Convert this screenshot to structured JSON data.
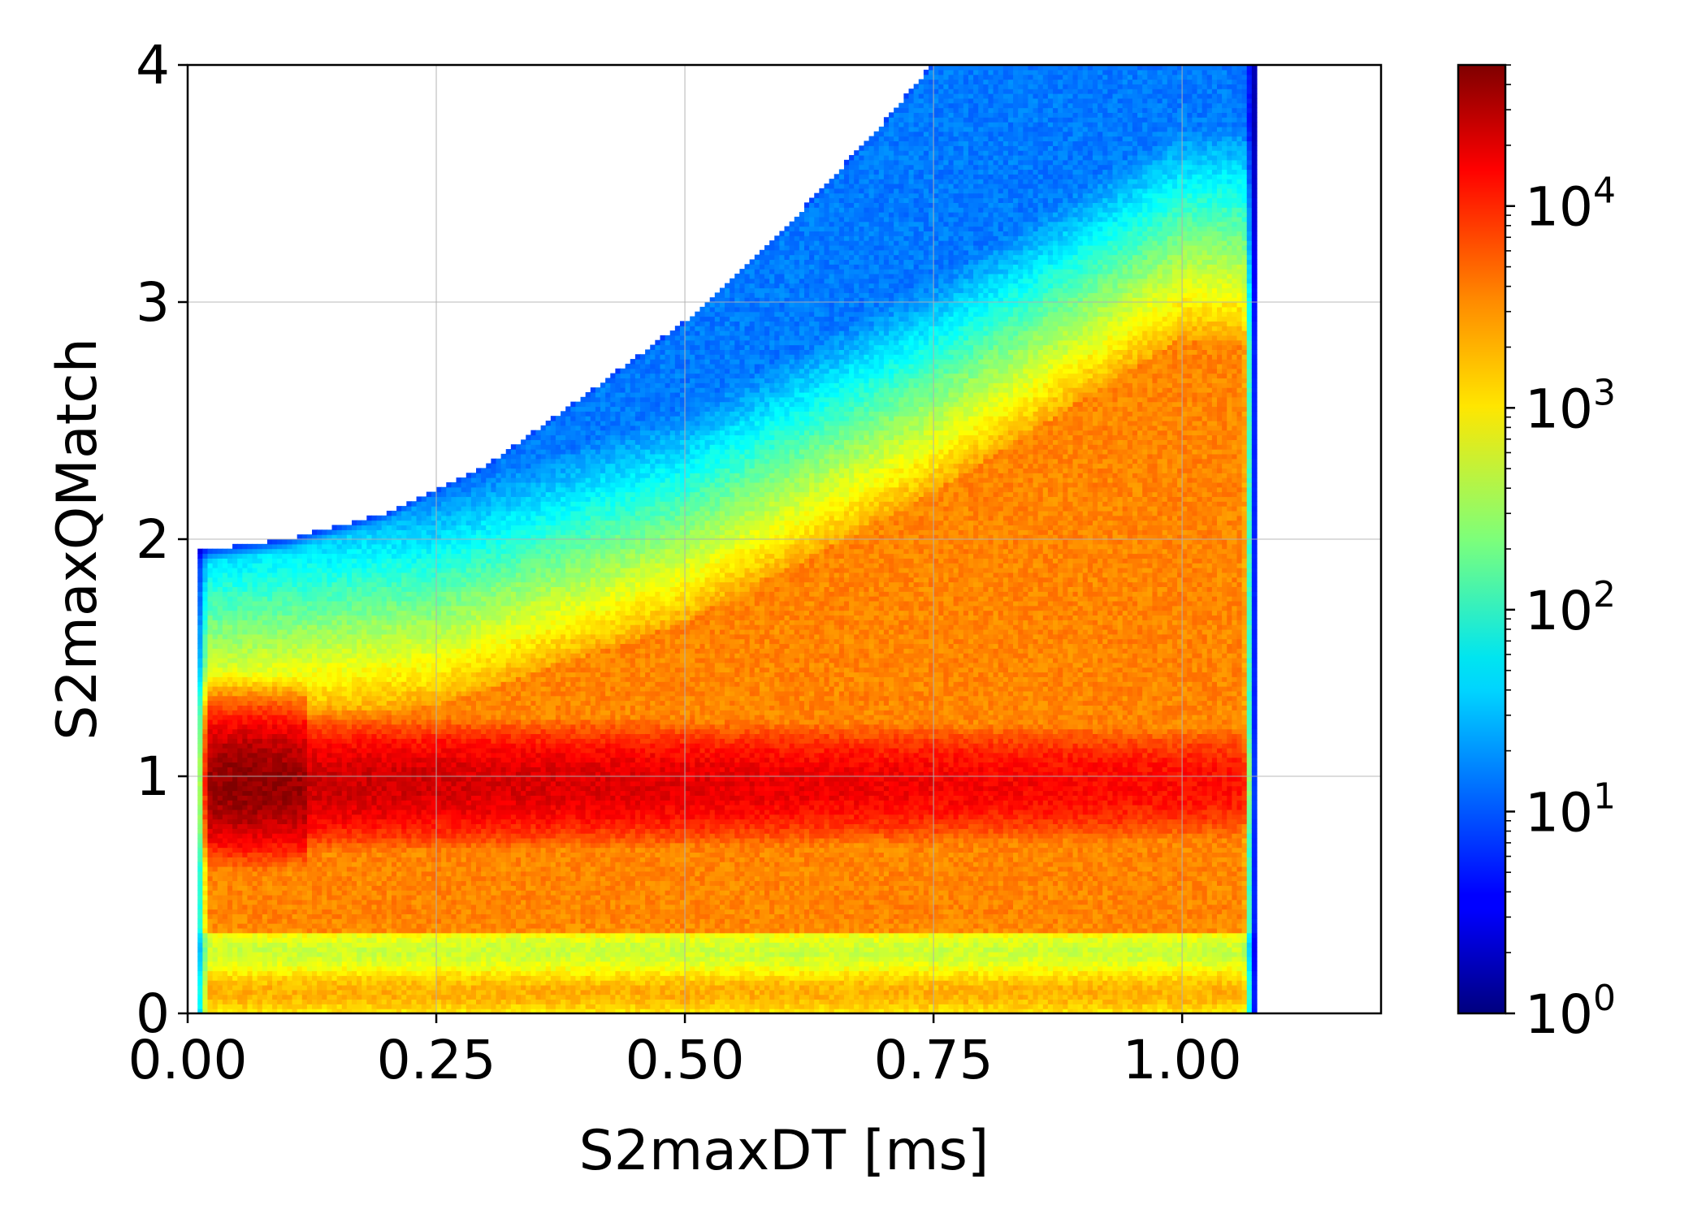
{
  "chart_data": {
    "type": "heatmap",
    "xlabel": "S2maxDT [ms]",
    "ylabel": "S2maxQMatch",
    "xlim": [
      0.0,
      1.2
    ],
    "ylim": [
      0,
      4
    ],
    "x_ticks": [
      "0.00",
      "0.25",
      "0.50",
      "0.75",
      "1.00"
    ],
    "x_tick_values": [
      0.0,
      0.25,
      0.5,
      0.75,
      1.0
    ],
    "y_ticks": [
      "0",
      "1",
      "2",
      "3",
      "4"
    ],
    "y_tick_values": [
      0,
      1,
      2,
      3,
      4
    ],
    "grid": true,
    "colormap": "jet",
    "color_scale": "log",
    "colorbar": {
      "range": [
        1,
        50000
      ],
      "ticks": [
        {
          "base": "10",
          "exp": "0",
          "value": 1
        },
        {
          "base": "10",
          "exp": "1",
          "value": 10
        },
        {
          "base": "10",
          "exp": "2",
          "value": 100
        },
        {
          "base": "10",
          "exp": "3",
          "value": 1000
        },
        {
          "base": "10",
          "exp": "4",
          "value": 10000
        }
      ]
    },
    "data_extent": {
      "x_min": 0.01,
      "x_max": 1.07,
      "upper_edge": [
        {
          "x": 0.01,
          "y": 1.94
        },
        {
          "x": 0.1,
          "y": 1.99
        },
        {
          "x": 0.2,
          "y": 2.1
        },
        {
          "x": 0.3,
          "y": 2.3
        },
        {
          "x": 0.4,
          "y": 2.6
        },
        {
          "x": 0.5,
          "y": 2.91
        },
        {
          "x": 0.6,
          "y": 3.3
        },
        {
          "x": 0.7,
          "y": 3.75
        },
        {
          "x": 0.75,
          "y": 4.0
        }
      ]
    },
    "features": {
      "main_band": {
        "y": 0.97,
        "peak_count": 50000,
        "peak_x": 0.06
      },
      "rising_band": [
        {
          "x": 0.0,
          "y": 1.2
        },
        {
          "x": 0.25,
          "y": 1.3
        },
        {
          "x": 0.5,
          "y": 1.65
        },
        {
          "x": 0.75,
          "y": 2.2
        },
        {
          "x": 1.0,
          "y": 2.85
        }
      ]
    }
  }
}
